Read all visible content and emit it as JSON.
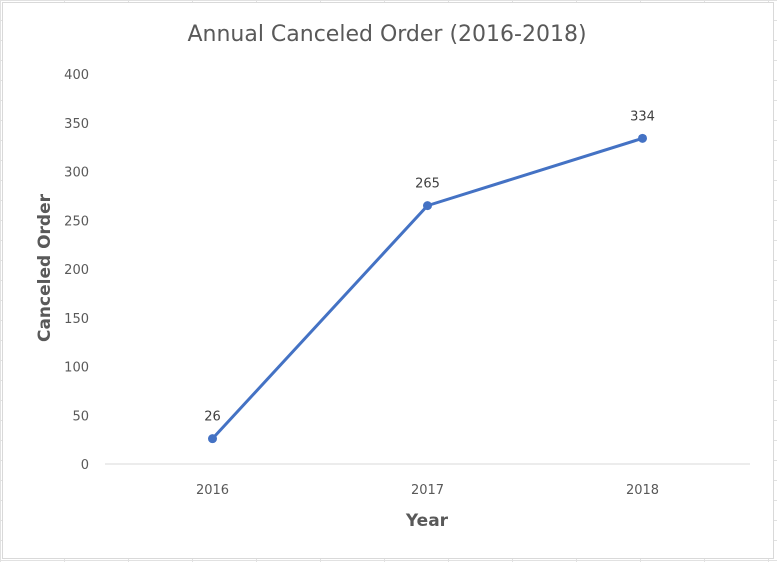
{
  "chart_data": {
    "type": "line",
    "title": "Annual Canceled Order (2016-2018)",
    "xlabel": "Year",
    "ylabel": "Canceled Order",
    "categories": [
      "2016",
      "2017",
      "2018"
    ],
    "series": [
      {
        "values": [
          26,
          265,
          334
        ],
        "color": "#4472c4"
      }
    ],
    "data_labels": [
      "26",
      "265",
      "334"
    ],
    "ylim": [
      0,
      400
    ],
    "yticks": [
      "0",
      "50",
      "100",
      "150",
      "200",
      "250",
      "300",
      "350",
      "400"
    ],
    "grid": false,
    "legend": "none"
  }
}
